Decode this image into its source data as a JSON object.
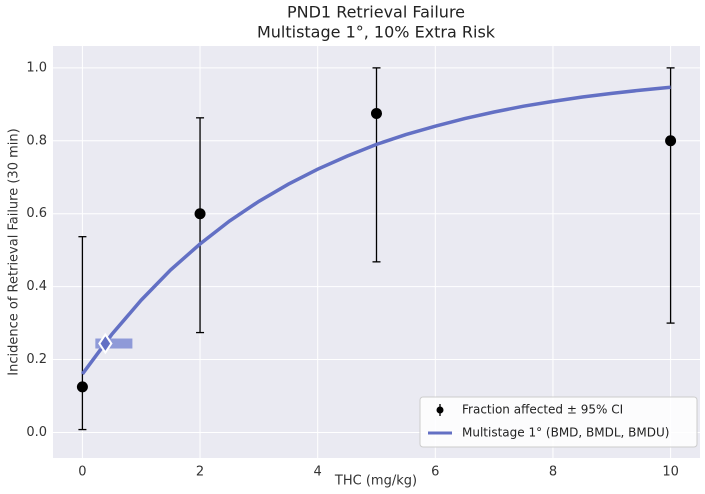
{
  "chart_data": {
    "type": "dose-response",
    "title": "PND1 Retrieval Failure",
    "subtitle": "Multistage 1°, 10% Extra Risk",
    "x_label": "THC (mg/kg)",
    "y_label": "Incidence of Retrieval Failure (30 min)",
    "xlim": [
      -0.5,
      10.5
    ],
    "ylim": [
      -0.07,
      1.06
    ],
    "xticks": [
      0,
      2,
      4,
      6,
      8,
      10
    ],
    "yticks": [
      {
        "value": 0,
        "label": "0.0"
      },
      {
        "value": 0.2,
        "label": "0.2"
      },
      {
        "value": 0.4,
        "label": "0.4"
      },
      {
        "value": 0.6,
        "label": "0.6"
      },
      {
        "value": 0.8,
        "label": "0.8"
      },
      {
        "value": 1,
        "label": "1.0"
      }
    ],
    "grid": true,
    "legend": "lower right",
    "series": [
      {
        "name": "Fraction affected ± 95% CI",
        "type": "errorbar",
        "color": "#000000",
        "x": [
          0,
          2,
          5,
          10
        ],
        "values": [
          0.125,
          0.6,
          0.875,
          0.8
        ],
        "ci_lower": [
          0.008,
          0.274,
          0.468,
          0.3
        ],
        "ci_upper": [
          0.537,
          0.863,
          1.0,
          1.0
        ]
      },
      {
        "name": "Multistage 1° (BMD, BMDL, BMDU)",
        "type": "line",
        "color": "#6370c4",
        "interval_color": "#8f9ad8",
        "x": [
          0,
          0.5,
          1,
          1.5,
          2,
          2.5,
          3,
          3.5,
          4,
          4.5,
          5,
          5.5,
          6,
          6.5,
          7,
          7.5,
          8,
          8.5,
          9,
          9.5,
          10
        ],
        "values": [
          0.16,
          0.269,
          0.363,
          0.446,
          0.517,
          0.58,
          0.634,
          0.681,
          0.722,
          0.758,
          0.79,
          0.817,
          0.84,
          0.861,
          0.879,
          0.895,
          0.908,
          0.92,
          0.93,
          0.939,
          0.947
        ],
        "bmd": 0.39,
        "bmd_response": 0.244,
        "bmdl": 0.22,
        "bmdu": 0.85
      }
    ]
  }
}
